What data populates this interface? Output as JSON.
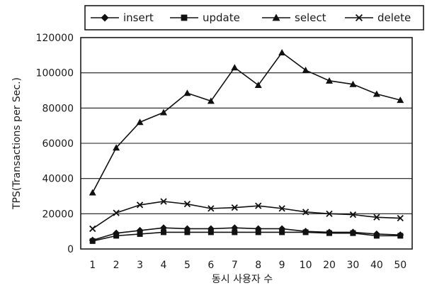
{
  "chart_data": {
    "type": "line",
    "title": "",
    "xlabel": "동시 사용자 수",
    "ylabel": "TPS(Transactions per Sec.)",
    "categories": [
      "1",
      "2",
      "3",
      "4",
      "5",
      "6",
      "7",
      "8",
      "9",
      "10",
      "20",
      "30",
      "40",
      "50"
    ],
    "ylim": [
      0,
      120000
    ],
    "yticks": [
      0,
      20000,
      40000,
      60000,
      80000,
      100000,
      120000
    ],
    "grid": true,
    "legend_position": "top",
    "series": [
      {
        "name": "insert",
        "marker": "diamond",
        "values": [
          5000,
          9000,
          10500,
          12000,
          11500,
          11500,
          12000,
          11500,
          11500,
          10000,
          9500,
          9500,
          8500,
          8000
        ]
      },
      {
        "name": "update",
        "marker": "square",
        "values": [
          4500,
          7500,
          8500,
          9500,
          9500,
          9500,
          9500,
          9500,
          9500,
          9500,
          9000,
          9000,
          7500,
          7500
        ]
      },
      {
        "name": "select",
        "marker": "triangle",
        "values": [
          32000,
          57500,
          72000,
          77500,
          88500,
          84000,
          103000,
          93000,
          111500,
          101500,
          95500,
          93500,
          88000,
          84500
        ]
      },
      {
        "name": "delete",
        "marker": "x",
        "values": [
          11500,
          20500,
          25000,
          27000,
          25500,
          23000,
          23500,
          24500,
          23000,
          21000,
          20000,
          19500,
          18000,
          17500
        ]
      }
    ]
  }
}
